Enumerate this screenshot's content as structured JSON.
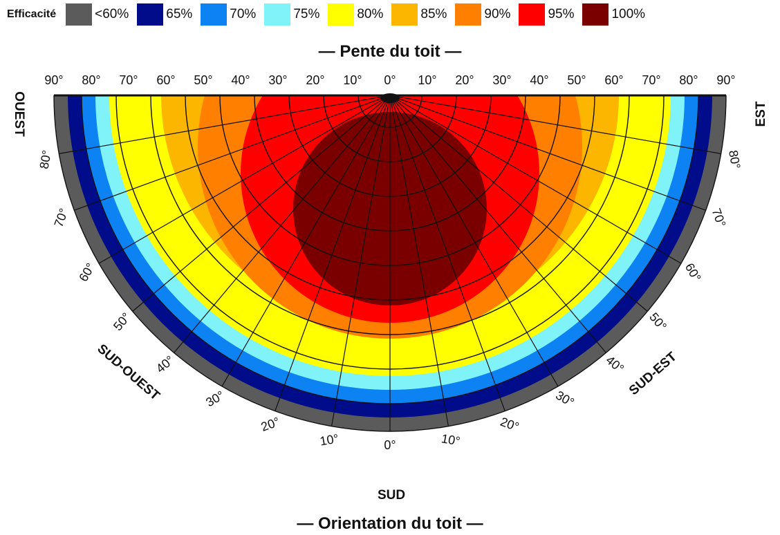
{
  "chart_data": {
    "type": "heatmap",
    "legend": {
      "title": "Efficacité",
      "entries": [
        {
          "label": "<60%",
          "color": "#5b5b5b"
        },
        {
          "label": "65%",
          "color": "#000c8a"
        },
        {
          "label": "70%",
          "color": "#0d82f3"
        },
        {
          "label": "75%",
          "color": "#7ff3f8"
        },
        {
          "label": "80%",
          "color": "#ffff00"
        },
        {
          "label": "85%",
          "color": "#fdb600"
        },
        {
          "label": "90%",
          "color": "#ff8000"
        },
        {
          "label": "95%",
          "color": "#ff0000"
        },
        {
          "label": "100%",
          "color": "#7a0000"
        }
      ]
    },
    "top_axis": {
      "title": "— Pente du toit —",
      "tick_labels": [
        "90°",
        "80°",
        "70°",
        "60°",
        "50°",
        "40°",
        "30°",
        "20°",
        "10°",
        "0°",
        "10°",
        "20°",
        "30°",
        "40°",
        "50°",
        "60°",
        "70°",
        "80°",
        "90°"
      ]
    },
    "bottom_axis": {
      "title": "— Orientation du toit —",
      "tick_labels": [
        "80°",
        "70°",
        "60°",
        "50°",
        "40°",
        "30°",
        "20°",
        "10°",
        "0°",
        "10°",
        "20°",
        "30°",
        "40°",
        "50°",
        "60°",
        "70°",
        "80°"
      ]
    },
    "directions": {
      "west": "OUEST",
      "east": "EST",
      "southwest": "SUD-OUEST",
      "southeast": "SUD-EST",
      "south": "SUD"
    },
    "zones": [
      {
        "efficiency": "<60%"
      },
      {
        "efficiency": "65%"
      },
      {
        "efficiency": "70%"
      },
      {
        "efficiency": "75%"
      },
      {
        "efficiency": "80%"
      },
      {
        "efficiency": "85%"
      },
      {
        "efficiency": "90%"
      },
      {
        "efficiency": "95%"
      },
      {
        "efficiency": "100%"
      }
    ]
  }
}
